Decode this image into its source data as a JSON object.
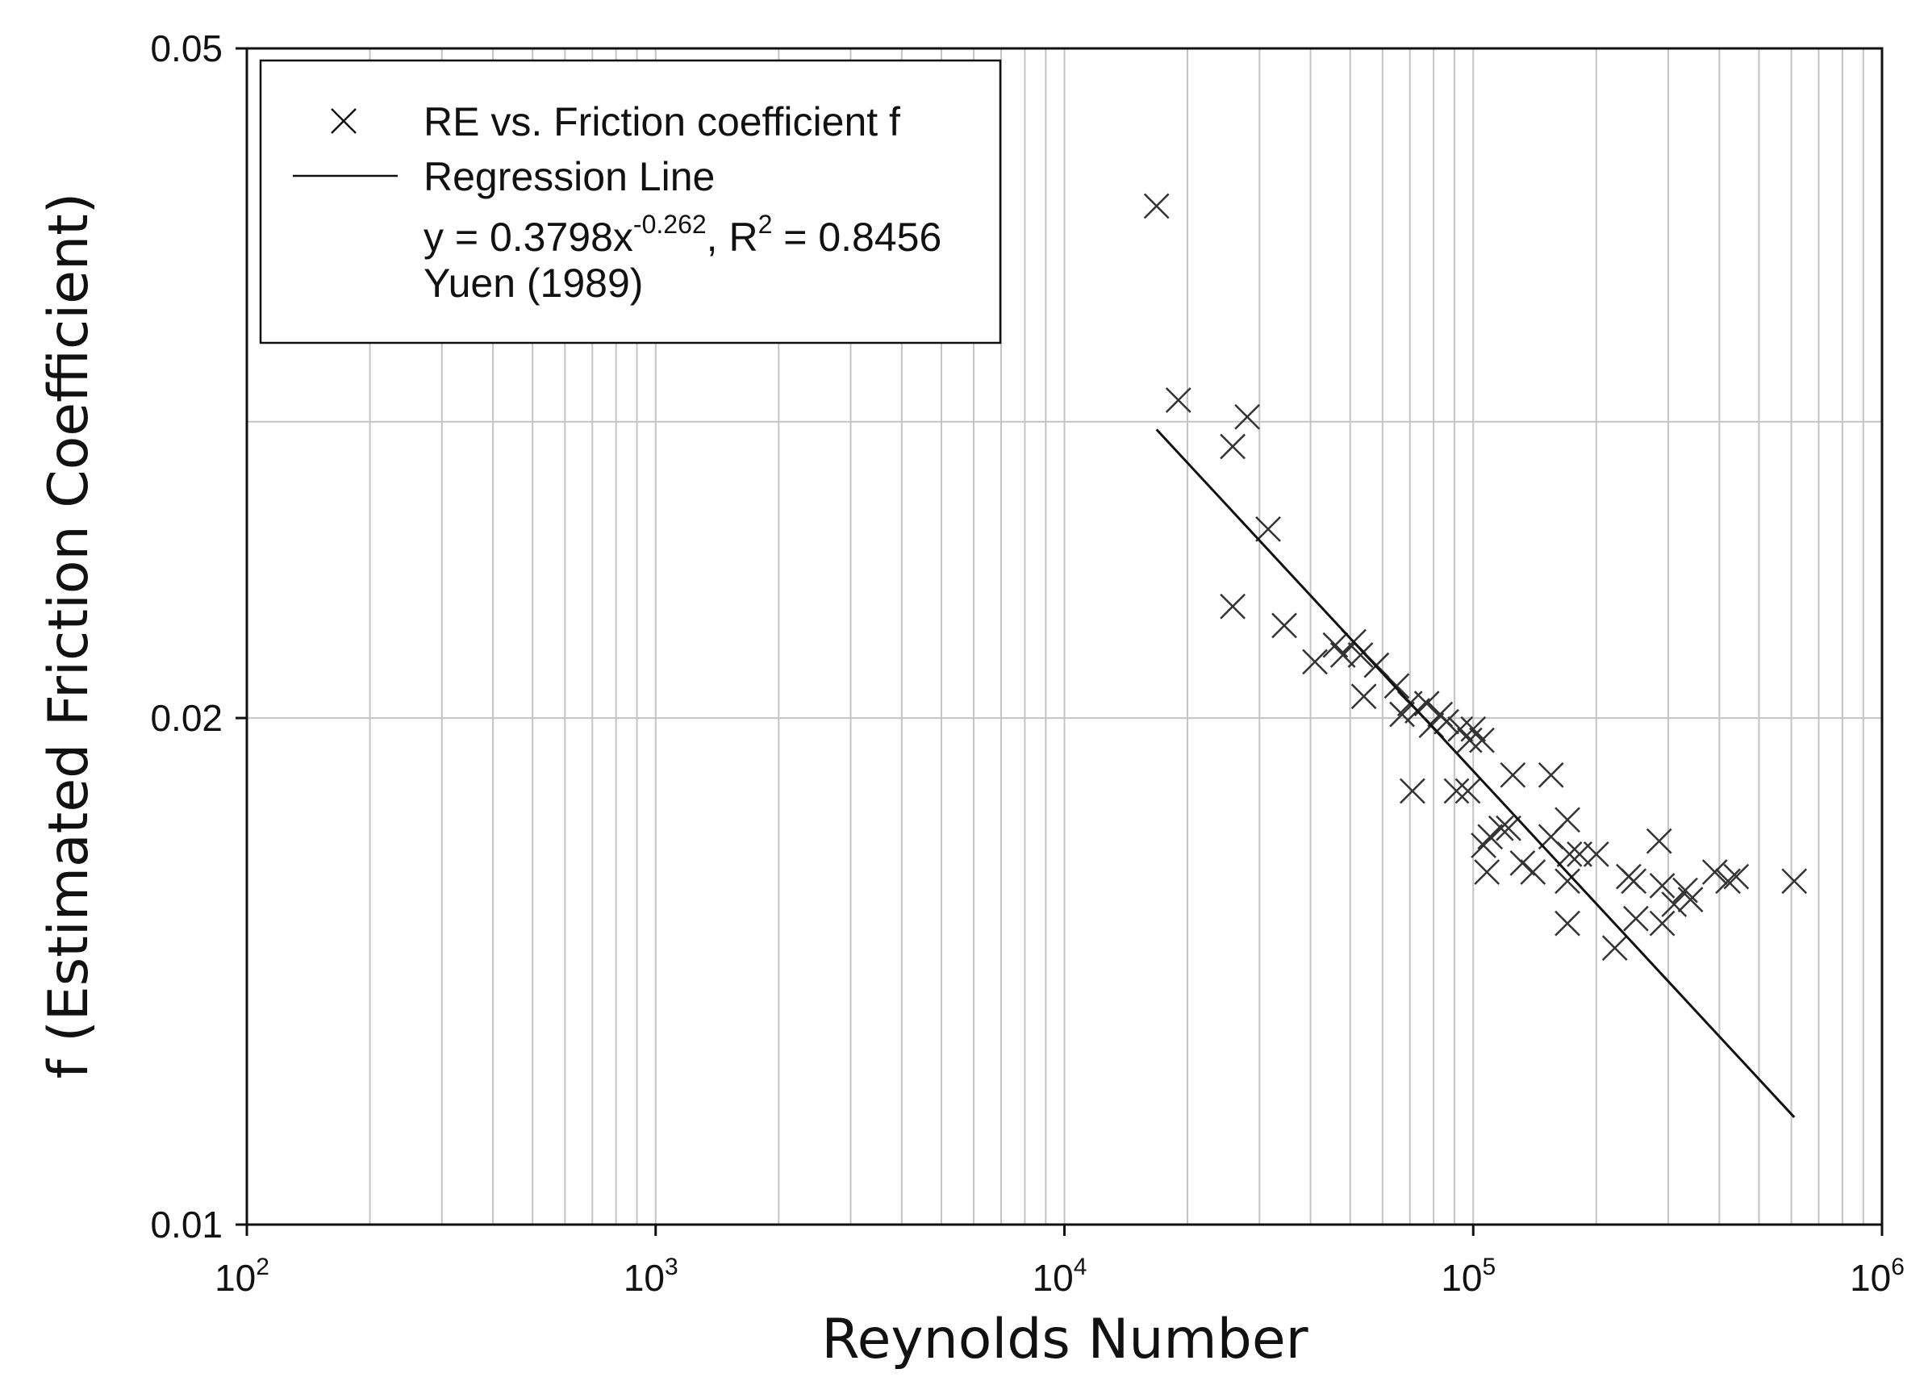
{
  "chart_data": {
    "type": "scatter",
    "title": "",
    "xlabel": "Reynolds Number",
    "ylabel": "f (Estimated Friction Coefficient)",
    "x_scale": "log",
    "y_scale": "log",
    "xlim": [
      100,
      1000000
    ],
    "ylim": [
      0.01,
      0.05
    ],
    "x_ticks": [
      {
        "value": 100,
        "base": "10",
        "exp": "2"
      },
      {
        "value": 1000,
        "base": "10",
        "exp": "3"
      },
      {
        "value": 10000,
        "base": "10",
        "exp": "4"
      },
      {
        "value": 100000,
        "base": "10",
        "exp": "5"
      },
      {
        "value": 1000000,
        "base": "10",
        "exp": "6"
      }
    ],
    "y_ticks": [
      {
        "value": 0.05,
        "label": "0.05"
      },
      {
        "value": 0.02,
        "label": "0.02"
      },
      {
        "value": 0.01,
        "label": "0.01"
      }
    ],
    "y_minor_grid": [
      0.03
    ],
    "grid": true,
    "legend": {
      "position": "top-left",
      "entries": [
        {
          "marker": "x",
          "label": "RE vs. Friction coefficient f"
        },
        {
          "marker": "line",
          "label": "Regression Line"
        }
      ],
      "equation": {
        "prefix": "y = 0.3798x",
        "exponent": "-0.262",
        "middle": ", R",
        "r2_exponent": "2",
        "suffix": " = 0.8456"
      },
      "source": "Yuen (1989)"
    },
    "series": [
      {
        "name": "RE vs. Friction coefficient f",
        "marker": "x",
        "points": [
          [
            16800,
            0.0403
          ],
          [
            19000,
            0.0309
          ],
          [
            28000,
            0.0302
          ],
          [
            25800,
            0.029
          ],
          [
            31500,
            0.0259
          ],
          [
            25800,
            0.0233
          ],
          [
            34500,
            0.0227
          ],
          [
            41000,
            0.0216
          ],
          [
            46000,
            0.0221
          ],
          [
            48000,
            0.0218
          ],
          [
            51000,
            0.0222
          ],
          [
            53000,
            0.0218
          ],
          [
            58000,
            0.0215
          ],
          [
            54000,
            0.0206
          ],
          [
            65000,
            0.0209
          ],
          [
            67000,
            0.0201
          ],
          [
            70000,
            0.0204
          ],
          [
            73000,
            0.0202
          ],
          [
            77000,
            0.0204
          ],
          [
            79000,
            0.0198
          ],
          [
            83000,
            0.0201
          ],
          [
            86000,
            0.0199
          ],
          [
            93000,
            0.0197
          ],
          [
            100000,
            0.0197
          ],
          [
            98000,
            0.0194
          ],
          [
            105000,
            0.0194
          ],
          [
            71000,
            0.0181
          ],
          [
            91000,
            0.0181
          ],
          [
            97000,
            0.0181
          ],
          [
            125000,
            0.0185
          ],
          [
            155000,
            0.0185
          ],
          [
            110000,
            0.017
          ],
          [
            117000,
            0.0172
          ],
          [
            122000,
            0.0172
          ],
          [
            106000,
            0.0168
          ],
          [
            155000,
            0.017
          ],
          [
            170000,
            0.0174
          ],
          [
            172000,
            0.0166
          ],
          [
            182000,
            0.0166
          ],
          [
            200000,
            0.0166
          ],
          [
            108000,
            0.0162
          ],
          [
            132000,
            0.0164
          ],
          [
            140000,
            0.0162
          ],
          [
            170000,
            0.016
          ],
          [
            240000,
            0.0161
          ],
          [
            247000,
            0.016
          ],
          [
            285000,
            0.0169
          ],
          [
            290000,
            0.0159
          ],
          [
            340000,
            0.0156
          ],
          [
            390000,
            0.0162
          ],
          [
            420000,
            0.016
          ],
          [
            440000,
            0.0161
          ],
          [
            610000,
            0.016
          ],
          [
            170000,
            0.0151
          ],
          [
            250000,
            0.0152
          ],
          [
            290000,
            0.0151
          ],
          [
            222000,
            0.0146
          ],
          [
            310000,
            0.0155
          ],
          [
            330000,
            0.0158
          ]
        ]
      }
    ],
    "regression": {
      "name": "Regression Line",
      "coef": 0.3798,
      "exponent": -0.262,
      "x_range": [
        16800,
        610000
      ]
    }
  }
}
